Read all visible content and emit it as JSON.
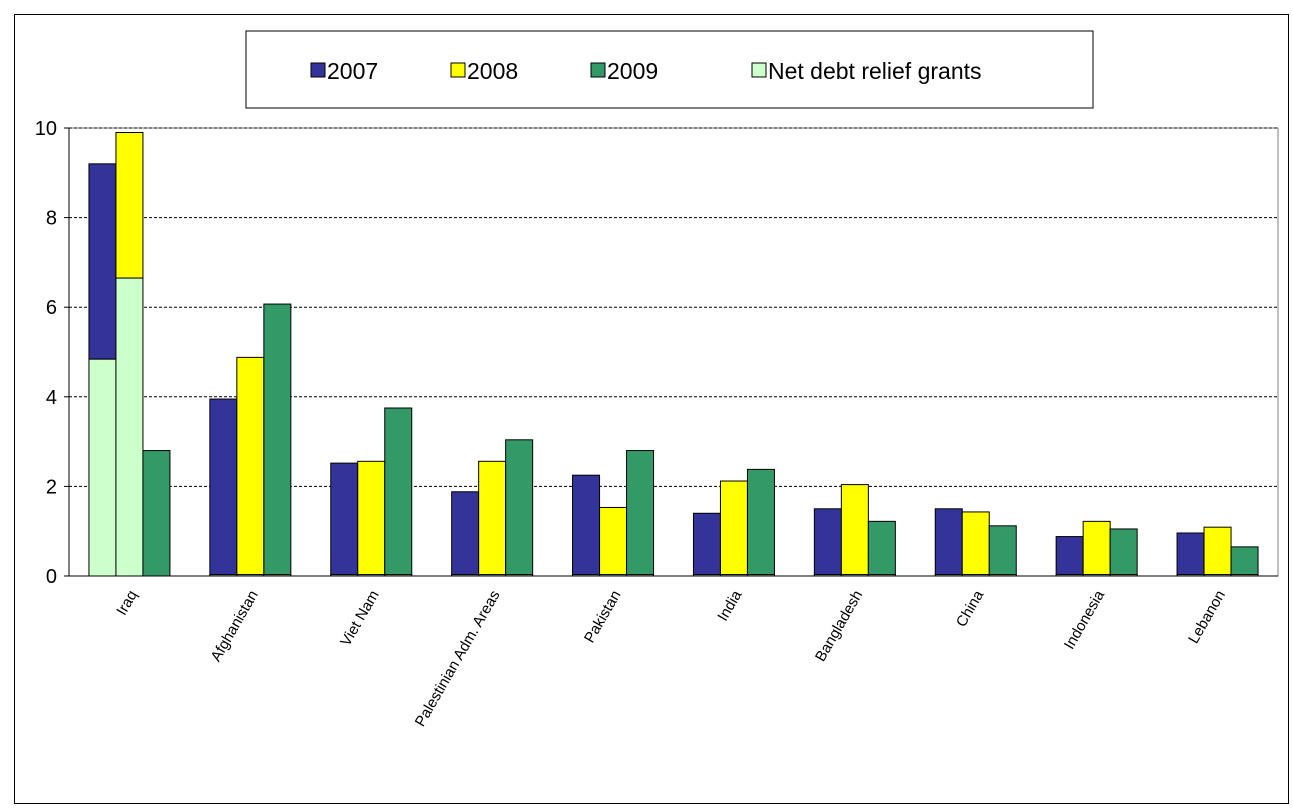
{
  "chart_data": {
    "type": "bar",
    "title": "",
    "xlabel": "",
    "ylabel": "",
    "ylim": [
      0,
      10
    ],
    "yticks": [
      0,
      2,
      4,
      6,
      8,
      10
    ],
    "grid": true,
    "legend_position": "top",
    "categories": [
      "Iraq",
      "Afghanistan",
      "Viet Nam",
      "Palestinian Adm. Areas",
      "Pakistan",
      "India",
      "Bangladesh",
      "China",
      "Indonesia",
      "Lebanon"
    ],
    "series": [
      {
        "name": "2007",
        "color": "#333399",
        "values": [
          9.2,
          3.95,
          2.52,
          1.88,
          2.25,
          1.4,
          1.5,
          1.5,
          0.88,
          0.96
        ]
      },
      {
        "name": "2008",
        "color": "#ffff00",
        "values": [
          9.9,
          4.88,
          2.56,
          2.56,
          1.53,
          2.12,
          2.04,
          1.43,
          1.22,
          1.09
        ]
      },
      {
        "name": "2009",
        "color": "#339966",
        "values": [
          2.8,
          6.07,
          3.75,
          3.04,
          2.8,
          2.38,
          1.22,
          1.12,
          1.05,
          0.65
        ]
      }
    ],
    "stacked_component": {
      "name": "Net debt relief grants",
      "color": "#ccffcc",
      "values_2007": [
        4.84,
        0.03,
        0.03,
        0.03,
        0.03,
        0.03,
        0.03,
        0.03,
        0.03,
        0.03
      ],
      "values_2008": [
        6.65,
        0.03,
        0.03,
        0.03,
        0.03,
        0.03,
        0.03,
        0.03,
        0.03,
        0.03
      ],
      "values_2009": [
        0.0,
        0.03,
        0.03,
        0.03,
        0.03,
        0.03,
        0.03,
        0.03,
        0.03,
        0.03
      ]
    }
  }
}
